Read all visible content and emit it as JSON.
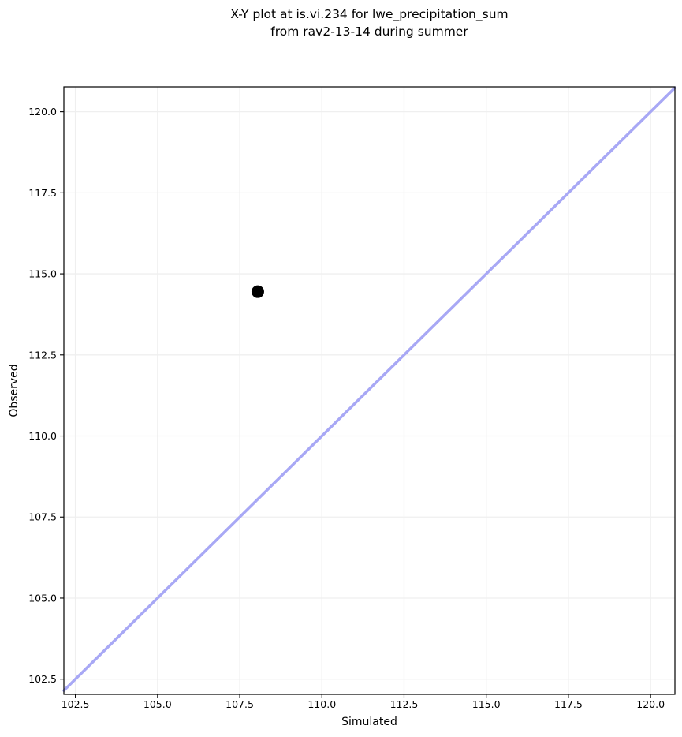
{
  "title": {
    "line1": "X-Y plot at is.vi.234 for lwe_precipitation_sum",
    "line2": "from rav2-13-14 during summer"
  },
  "chart_data": {
    "type": "scatter",
    "title": "X-Y plot at is.vi.234 for lwe_precipitation_sum\nfrom rav2-13-14 during summer",
    "xlabel": "Simulated",
    "ylabel": "Observed",
    "xlim": [
      102.15,
      120.74
    ],
    "ylim": [
      102.03,
      120.77
    ],
    "x_ticks": [
      102.5,
      105.0,
      107.5,
      110.0,
      112.5,
      115.0,
      117.5,
      120.0
    ],
    "x_tick_labels": [
      "102.5",
      "105.0",
      "107.5",
      "110.0",
      "112.5",
      "115.0",
      "117.5",
      "120.0"
    ],
    "y_ticks": [
      102.5,
      105.0,
      107.5,
      110.0,
      112.5,
      115.0,
      117.5,
      120.0
    ],
    "y_tick_labels": [
      "102.5",
      "105.0",
      "107.5",
      "110.0",
      "112.5",
      "115.0",
      "117.5",
      "120.0"
    ],
    "points": [
      {
        "x": 108.05,
        "y": 114.45
      }
    ],
    "identity_line": true,
    "grid": true,
    "legend": "none",
    "colors": {
      "point": "#000000",
      "identity_line": "#a8a8f5",
      "grid": "#efefef",
      "spine": "#000000",
      "text": "#000000",
      "background": "#ffffff"
    }
  }
}
